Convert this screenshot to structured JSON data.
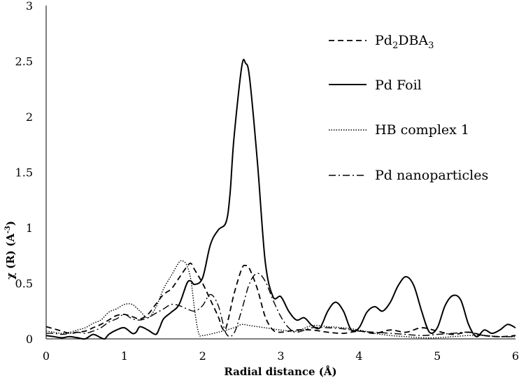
{
  "chart_data": {
    "type": "line",
    "title": "",
    "xlabel": "Radial distance (Å)",
    "ylabel": "χ (R) (A",
    "ylabel_sup": "-3",
    "ylabel_end": ")",
    "xlim": [
      0,
      6
    ],
    "ylim": [
      0,
      3
    ],
    "xticks": [
      "0",
      "1",
      "2",
      "3",
      "4",
      "5",
      "6"
    ],
    "yticks": [
      "0",
      "0.5",
      "1",
      "1.5",
      "2",
      "2.5",
      "3"
    ],
    "grid": false,
    "legend_position": "right",
    "series": [
      {
        "name": "Pd2DBA3",
        "name_base": "Pd",
        "name_sub1": "2",
        "name_mid": "DBA",
        "name_sub2": "3",
        "style": "dashed",
        "points": [
          [
            0,
            0.11
          ],
          [
            0.1,
            0.09
          ],
          [
            0.2,
            0.07
          ],
          [
            0.3,
            0.05
          ],
          [
            0.4,
            0.06
          ],
          [
            0.5,
            0.07
          ],
          [
            0.6,
            0.1
          ],
          [
            0.7,
            0.13
          ],
          [
            0.8,
            0.17
          ],
          [
            0.9,
            0.21
          ],
          [
            1.0,
            0.22
          ],
          [
            1.1,
            0.2
          ],
          [
            1.2,
            0.18
          ],
          [
            1.3,
            0.22
          ],
          [
            1.4,
            0.31
          ],
          [
            1.5,
            0.4
          ],
          [
            1.6,
            0.45
          ],
          [
            1.7,
            0.55
          ],
          [
            1.8,
            0.65
          ],
          [
            1.85,
            0.68
          ],
          [
            1.9,
            0.62
          ],
          [
            2.0,
            0.5
          ],
          [
            2.1,
            0.35
          ],
          [
            2.2,
            0.2
          ],
          [
            2.25,
            0.1
          ],
          [
            2.3,
            0.1
          ],
          [
            2.4,
            0.4
          ],
          [
            2.5,
            0.63
          ],
          [
            2.55,
            0.66
          ],
          [
            2.6,
            0.63
          ],
          [
            2.7,
            0.45
          ],
          [
            2.8,
            0.2
          ],
          [
            2.9,
            0.08
          ],
          [
            3.0,
            0.06
          ],
          [
            3.2,
            0.08
          ],
          [
            3.4,
            0.08
          ],
          [
            3.6,
            0.06
          ],
          [
            3.8,
            0.05
          ],
          [
            4.0,
            0.07
          ],
          [
            4.2,
            0.05
          ],
          [
            4.4,
            0.08
          ],
          [
            4.6,
            0.06
          ],
          [
            4.8,
            0.1
          ],
          [
            5.0,
            0.07
          ],
          [
            5.2,
            0.04
          ],
          [
            5.4,
            0.06
          ],
          [
            5.6,
            0.03
          ],
          [
            5.8,
            0.02
          ],
          [
            6.0,
            0.03
          ]
        ]
      },
      {
        "name": "Pd Foil",
        "style": "solid",
        "points": [
          [
            0,
            0.03
          ],
          [
            0.1,
            0.02
          ],
          [
            0.2,
            0.01
          ],
          [
            0.3,
            0.02
          ],
          [
            0.4,
            0.01
          ],
          [
            0.5,
            0.0
          ],
          [
            0.6,
            0.04
          ],
          [
            0.7,
            0.01
          ],
          [
            0.75,
            0.0
          ],
          [
            0.8,
            0.04
          ],
          [
            0.9,
            0.08
          ],
          [
            1.0,
            0.1
          ],
          [
            1.1,
            0.05
          ],
          [
            1.15,
            0.06
          ],
          [
            1.2,
            0.11
          ],
          [
            1.3,
            0.08
          ],
          [
            1.4,
            0.04
          ],
          [
            1.45,
            0.1
          ],
          [
            1.5,
            0.18
          ],
          [
            1.6,
            0.24
          ],
          [
            1.7,
            0.31
          ],
          [
            1.8,
            0.5
          ],
          [
            1.85,
            0.52
          ],
          [
            1.9,
            0.49
          ],
          [
            2.0,
            0.55
          ],
          [
            2.1,
            0.85
          ],
          [
            2.2,
            0.98
          ],
          [
            2.3,
            1.05
          ],
          [
            2.35,
            1.3
          ],
          [
            2.4,
            1.8
          ],
          [
            2.5,
            2.45
          ],
          [
            2.55,
            2.48
          ],
          [
            2.6,
            2.35
          ],
          [
            2.7,
            1.6
          ],
          [
            2.8,
            0.7
          ],
          [
            2.9,
            0.38
          ],
          [
            3.0,
            0.38
          ],
          [
            3.1,
            0.25
          ],
          [
            3.2,
            0.17
          ],
          [
            3.3,
            0.19
          ],
          [
            3.4,
            0.12
          ],
          [
            3.5,
            0.1
          ],
          [
            3.6,
            0.25
          ],
          [
            3.7,
            0.33
          ],
          [
            3.8,
            0.25
          ],
          [
            3.9,
            0.08
          ],
          [
            4.0,
            0.1
          ],
          [
            4.1,
            0.24
          ],
          [
            4.2,
            0.29
          ],
          [
            4.3,
            0.25
          ],
          [
            4.4,
            0.33
          ],
          [
            4.5,
            0.48
          ],
          [
            4.6,
            0.56
          ],
          [
            4.7,
            0.48
          ],
          [
            4.8,
            0.25
          ],
          [
            4.9,
            0.06
          ],
          [
            5.0,
            0.1
          ],
          [
            5.1,
            0.3
          ],
          [
            5.2,
            0.39
          ],
          [
            5.3,
            0.35
          ],
          [
            5.4,
            0.13
          ],
          [
            5.5,
            0.02
          ],
          [
            5.6,
            0.08
          ],
          [
            5.7,
            0.05
          ],
          [
            5.8,
            0.08
          ],
          [
            5.9,
            0.13
          ],
          [
            6.0,
            0.1
          ]
        ]
      },
      {
        "name": "HB complex 1",
        "style": "dotted",
        "points": [
          [
            0,
            0.07
          ],
          [
            0.1,
            0.06
          ],
          [
            0.2,
            0.05
          ],
          [
            0.3,
            0.06
          ],
          [
            0.4,
            0.08
          ],
          [
            0.5,
            0.1
          ],
          [
            0.6,
            0.14
          ],
          [
            0.7,
            0.17
          ],
          [
            0.8,
            0.24
          ],
          [
            0.9,
            0.27
          ],
          [
            1.0,
            0.31
          ],
          [
            1.1,
            0.31
          ],
          [
            1.2,
            0.25
          ],
          [
            1.3,
            0.19
          ],
          [
            1.4,
            0.28
          ],
          [
            1.5,
            0.45
          ],
          [
            1.6,
            0.57
          ],
          [
            1.7,
            0.69
          ],
          [
            1.75,
            0.7
          ],
          [
            1.8,
            0.66
          ],
          [
            1.85,
            0.53
          ],
          [
            1.9,
            0.25
          ],
          [
            1.95,
            0.05
          ],
          [
            2.0,
            0.03
          ],
          [
            2.2,
            0.06
          ],
          [
            2.4,
            0.1
          ],
          [
            2.5,
            0.13
          ],
          [
            2.6,
            0.12
          ],
          [
            2.8,
            0.1
          ],
          [
            3.0,
            0.08
          ],
          [
            3.2,
            0.07
          ],
          [
            3.4,
            0.12
          ],
          [
            3.6,
            0.11
          ],
          [
            3.8,
            0.1
          ],
          [
            4.0,
            0.08
          ],
          [
            4.2,
            0.05
          ],
          [
            4.4,
            0.03
          ],
          [
            4.6,
            0.02
          ],
          [
            4.8,
            0.01
          ],
          [
            5.0,
            0.01
          ],
          [
            5.2,
            0.02
          ],
          [
            5.4,
            0.03
          ],
          [
            5.6,
            0.03
          ],
          [
            5.8,
            0.02
          ],
          [
            6.0,
            0.02
          ]
        ]
      },
      {
        "name": "Pd nanoparticles",
        "style": "dash-dot",
        "points": [
          [
            0,
            0.05
          ],
          [
            0.1,
            0.05
          ],
          [
            0.2,
            0.04
          ],
          [
            0.3,
            0.05
          ],
          [
            0.4,
            0.06
          ],
          [
            0.5,
            0.05
          ],
          [
            0.6,
            0.07
          ],
          [
            0.7,
            0.1
          ],
          [
            0.8,
            0.15
          ],
          [
            0.9,
            0.18
          ],
          [
            1.0,
            0.22
          ],
          [
            1.1,
            0.18
          ],
          [
            1.2,
            0.17
          ],
          [
            1.3,
            0.19
          ],
          [
            1.4,
            0.23
          ],
          [
            1.5,
            0.27
          ],
          [
            1.6,
            0.31
          ],
          [
            1.7,
            0.3
          ],
          [
            1.8,
            0.27
          ],
          [
            1.9,
            0.25
          ],
          [
            2.0,
            0.3
          ],
          [
            2.1,
            0.4
          ],
          [
            2.2,
            0.3
          ],
          [
            2.3,
            0.05
          ],
          [
            2.4,
            0.05
          ],
          [
            2.5,
            0.26
          ],
          [
            2.6,
            0.5
          ],
          [
            2.7,
            0.59
          ],
          [
            2.8,
            0.52
          ],
          [
            2.9,
            0.35
          ],
          [
            3.0,
            0.2
          ],
          [
            3.1,
            0.1
          ],
          [
            3.2,
            0.06
          ],
          [
            3.4,
            0.1
          ],
          [
            3.6,
            0.1
          ],
          [
            3.8,
            0.09
          ],
          [
            4.0,
            0.07
          ],
          [
            4.2,
            0.06
          ],
          [
            4.4,
            0.05
          ],
          [
            4.6,
            0.04
          ],
          [
            4.8,
            0.03
          ],
          [
            5.0,
            0.04
          ],
          [
            5.2,
            0.05
          ],
          [
            5.4,
            0.06
          ],
          [
            5.6,
            0.03
          ],
          [
            5.8,
            0.02
          ],
          [
            6.0,
            0.02
          ]
        ]
      }
    ]
  }
}
